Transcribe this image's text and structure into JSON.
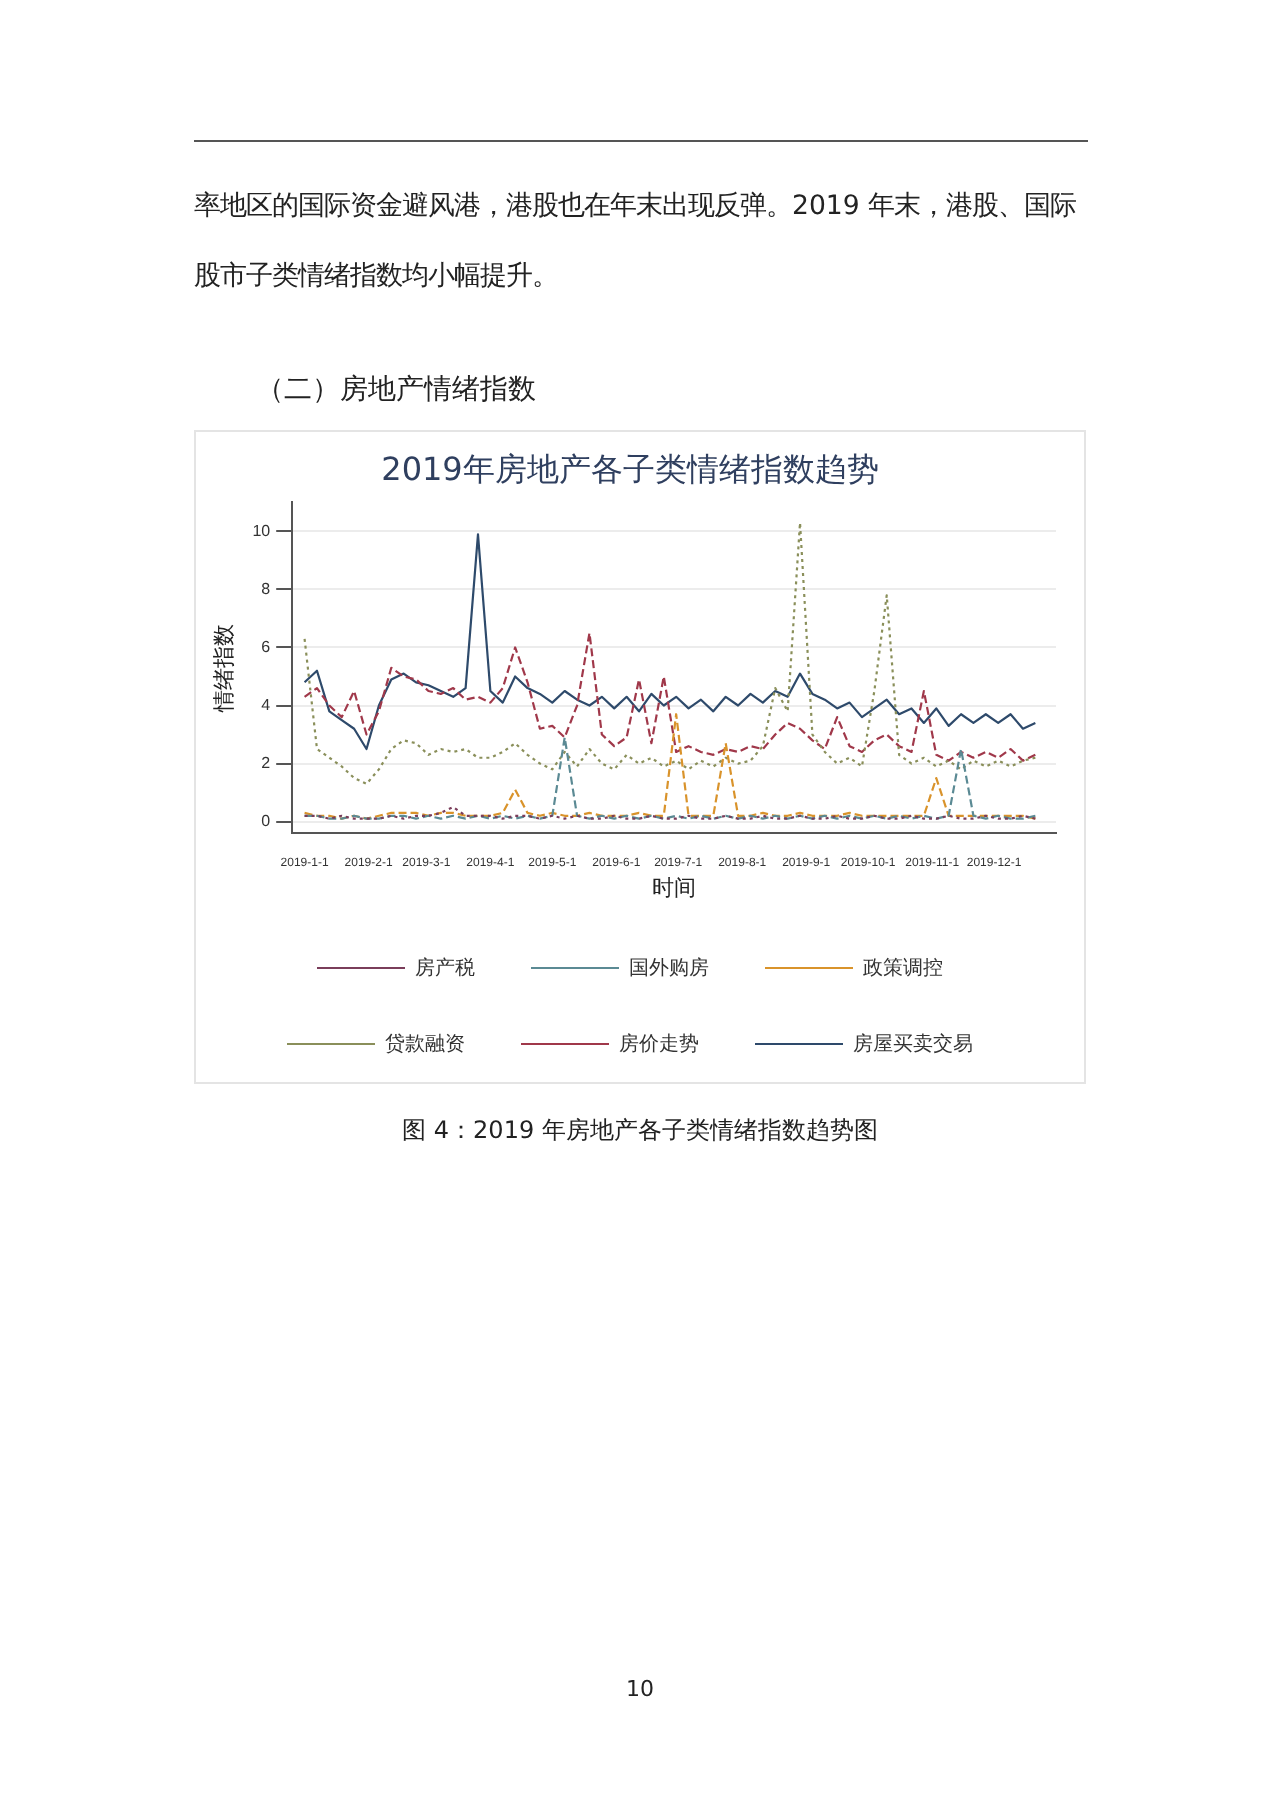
{
  "chart_data": {
    "type": "line",
    "title": "2019年房地产各子类情绪指数趋势",
    "xlabel": "时间",
    "ylabel": "情绪指数",
    "annotations": [
      "率地区的国际资金避风港，港股也在年末出现反弹。2019 年末，港股、国际股市子类情绪指数均小幅提升。",
      "（二）房地产情绪指数",
      "图 4：2019 年房地产各子类情绪指数趋势图",
      "10"
    ],
    "x": [
      "2019-01-01",
      "2019-01-07",
      "2019-01-13",
      "2019-01-19",
      "2019-01-25",
      "2019-01-31",
      "2019-02-06",
      "2019-02-12",
      "2019-02-18",
      "2019-02-24",
      "2019-03-02",
      "2019-03-08",
      "2019-03-14",
      "2019-03-20",
      "2019-03-26",
      "2019-04-01",
      "2019-04-07",
      "2019-04-13",
      "2019-04-19",
      "2019-04-25",
      "2019-05-01",
      "2019-05-07",
      "2019-05-13",
      "2019-05-19",
      "2019-05-25",
      "2019-05-31",
      "2019-06-06",
      "2019-06-12",
      "2019-06-18",
      "2019-06-24",
      "2019-06-30",
      "2019-07-06",
      "2019-07-12",
      "2019-07-18",
      "2019-07-24",
      "2019-07-30",
      "2019-08-05",
      "2019-08-11",
      "2019-08-17",
      "2019-08-23",
      "2019-08-29",
      "2019-09-04",
      "2019-09-10",
      "2019-09-16",
      "2019-09-22",
      "2019-09-28",
      "2019-10-04",
      "2019-10-10",
      "2019-10-16",
      "2019-10-22",
      "2019-10-28",
      "2019-11-03",
      "2019-11-09",
      "2019-11-15",
      "2019-11-21",
      "2019-11-27",
      "2019-12-03",
      "2019-12-09",
      "2019-12-15",
      "2019-12-21"
    ],
    "series": [
      {
        "name": "房屋买卖交易",
        "color": "#2e4a6b",
        "line_style": "solid",
        "values": [
          4.8,
          5.2,
          3.8,
          3.5,
          3.2,
          2.5,
          4.0,
          4.9,
          5.1,
          4.8,
          4.7,
          4.5,
          4.3,
          4.6,
          9.9,
          4.5,
          4.1,
          5.0,
          4.6,
          4.4,
          4.1,
          4.5,
          4.2,
          4.0,
          4.3,
          3.9,
          4.3,
          3.8,
          4.4,
          4.0,
          4.3,
          3.9,
          4.2,
          3.8,
          4.3,
          4.0,
          4.4,
          4.1,
          4.5,
          4.3,
          5.1,
          4.4,
          4.2,
          3.9,
          4.1,
          3.6,
          3.9,
          4.2,
          3.7,
          3.9,
          3.4,
          3.9,
          3.3,
          3.7,
          3.4,
          3.7,
          3.4,
          3.7,
          3.2,
          3.4
        ]
      },
      {
        "name": "房价走势",
        "color": "#a0384a",
        "line_style": "dashed",
        "values": [
          4.3,
          4.6,
          4.0,
          3.6,
          4.5,
          3.0,
          3.8,
          5.3,
          5.0,
          4.9,
          4.5,
          4.4,
          4.6,
          4.2,
          4.3,
          4.1,
          4.6,
          6.0,
          4.8,
          3.2,
          3.3,
          2.9,
          4.0,
          6.5,
          3.0,
          2.6,
          2.9,
          4.9,
          2.7,
          5.0,
          2.4,
          2.6,
          2.4,
          2.3,
          2.5,
          2.4,
          2.6,
          2.5,
          3.0,
          3.4,
          3.2,
          2.8,
          2.5,
          3.6,
          2.6,
          2.4,
          2.8,
          3.0,
          2.6,
          2.4,
          4.5,
          2.3,
          2.1,
          2.4,
          2.2,
          2.4,
          2.2,
          2.5,
          2.1,
          2.3
        ]
      },
      {
        "name": "贷款融资",
        "color": "#8a8f5a",
        "line_style": "dotted",
        "values": [
          6.3,
          2.5,
          2.2,
          1.9,
          1.5,
          1.3,
          1.8,
          2.5,
          2.8,
          2.7,
          2.3,
          2.5,
          2.4,
          2.5,
          2.2,
          2.2,
          2.4,
          2.7,
          2.3,
          2.0,
          1.8,
          2.4,
          1.9,
          2.5,
          2.0,
          1.8,
          2.3,
          2.0,
          2.2,
          1.9,
          2.1,
          1.8,
          2.1,
          1.9,
          2.2,
          2.0,
          2.1,
          2.6,
          4.6,
          3.8,
          10.3,
          3.0,
          2.4,
          2.0,
          2.2,
          1.9,
          4.5,
          7.8,
          2.3,
          2.0,
          2.2,
          1.9,
          2.1,
          1.8,
          2.1,
          1.9,
          2.1,
          1.9,
          2.1,
          2.2
        ]
      },
      {
        "name": "政策调控",
        "color": "#d9932b",
        "line_style": "dashed",
        "values": [
          0.3,
          0.2,
          0.2,
          0.1,
          0.2,
          0.1,
          0.2,
          0.3,
          0.3,
          0.3,
          0.2,
          0.3,
          0.3,
          0.2,
          0.2,
          0.2,
          0.3,
          1.1,
          0.3,
          0.2,
          0.3,
          0.2,
          0.2,
          0.3,
          0.2,
          0.2,
          0.2,
          0.3,
          0.2,
          0.2,
          3.7,
          0.2,
          0.2,
          0.2,
          2.7,
          0.2,
          0.2,
          0.3,
          0.2,
          0.2,
          0.3,
          0.2,
          0.2,
          0.2,
          0.3,
          0.2,
          0.2,
          0.2,
          0.2,
          0.2,
          0.2,
          1.5,
          0.2,
          0.2,
          0.2,
          0.2,
          0.2,
          0.2,
          0.2,
          0.1
        ]
      },
      {
        "name": "国外购房",
        "color": "#5b8a94",
        "line_style": "dashed",
        "values": [
          0.2,
          0.2,
          0.1,
          0.1,
          0.2,
          0.1,
          0.1,
          0.2,
          0.2,
          0.1,
          0.2,
          0.1,
          0.2,
          0.1,
          0.2,
          0.1,
          0.2,
          0.1,
          0.2,
          0.1,
          0.2,
          2.9,
          0.2,
          0.1,
          0.2,
          0.1,
          0.2,
          0.1,
          0.2,
          0.1,
          0.2,
          0.1,
          0.2,
          0.1,
          0.2,
          0.1,
          0.2,
          0.1,
          0.2,
          0.1,
          0.2,
          0.1,
          0.2,
          0.1,
          0.2,
          0.1,
          0.2,
          0.1,
          0.2,
          0.1,
          0.2,
          0.1,
          0.2,
          2.5,
          0.2,
          0.1,
          0.2,
          0.1,
          0.1,
          0.2
        ]
      },
      {
        "name": "房产税",
        "color": "#7a3d5a",
        "line_style": "dotted",
        "values": [
          0.2,
          0.2,
          0.1,
          0.2,
          0.1,
          0.1,
          0.1,
          0.2,
          0.1,
          0.2,
          0.2,
          0.3,
          0.5,
          0.2,
          0.2,
          0.2,
          0.1,
          0.2,
          0.2,
          0.1,
          0.2,
          0.1,
          0.2,
          0.1,
          0.1,
          0.2,
          0.1,
          0.1,
          0.2,
          0.1,
          0.1,
          0.2,
          0.1,
          0.1,
          0.2,
          0.1,
          0.1,
          0.2,
          0.1,
          0.1,
          0.2,
          0.1,
          0.1,
          0.2,
          0.1,
          0.1,
          0.2,
          0.1,
          0.1,
          0.2,
          0.1,
          0.1,
          0.2,
          0.1,
          0.1,
          0.2,
          0.1,
          0.1,
          0.2,
          0.1
        ]
      }
    ],
    "xlim": [
      "2018-12-26",
      "2019-12-31"
    ],
    "xticks": [
      {
        "value": "2019-01-01",
        "label": "2019-1-1"
      },
      {
        "value": "2019-02-01",
        "label": "2019-2-1"
      },
      {
        "value": "2019-03-01",
        "label": "2019-3-1"
      },
      {
        "value": "2019-04-01",
        "label": "2019-4-1"
      },
      {
        "value": "2019-05-01",
        "label": "2019-5-1"
      },
      {
        "value": "2019-06-01",
        "label": "2019-6-1"
      },
      {
        "value": "2019-07-01",
        "label": "2019-7-1"
      },
      {
        "value": "2019-08-01",
        "label": "2019-8-1"
      },
      {
        "value": "2019-09-01",
        "label": "2019-9-1"
      },
      {
        "value": "2019-10-01",
        "label": "2019-10-1"
      },
      {
        "value": "2019-11-01",
        "label": "2019-11-1"
      },
      {
        "value": "2019-12-01",
        "label": "2019-12-1"
      }
    ],
    "ylim": [
      -0.4,
      11
    ],
    "yticks": [
      0,
      2,
      4,
      6,
      8,
      10
    ],
    "grid": "y",
    "legend": "bottom",
    "marker": "none"
  }
}
